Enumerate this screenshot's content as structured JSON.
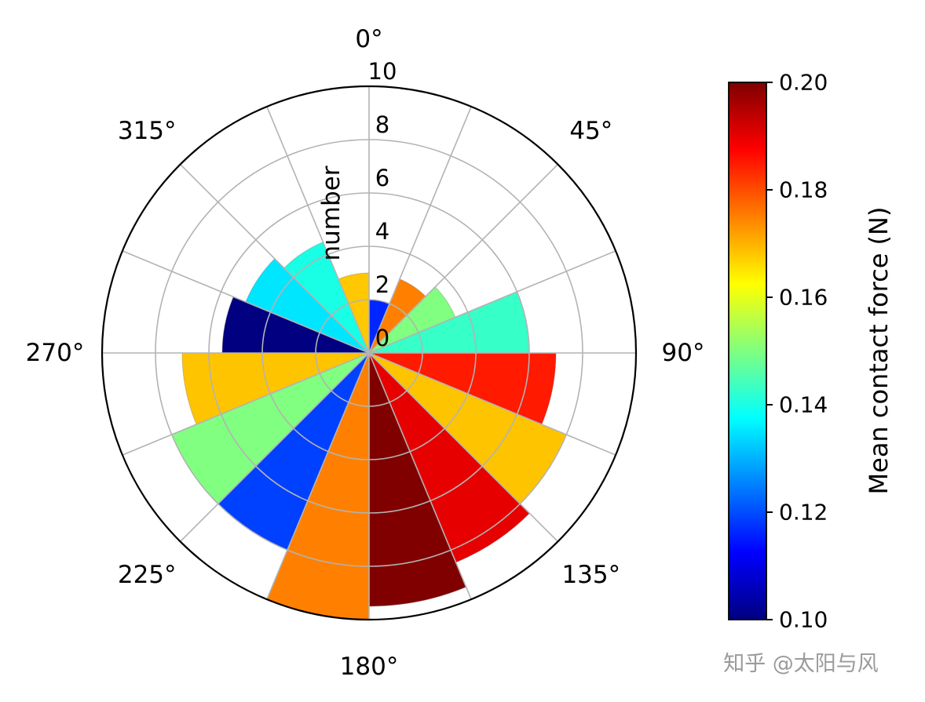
{
  "chart_data": {
    "type": "polar_bar",
    "title": "",
    "radial_label": "number",
    "radial_ticks": [
      0,
      2,
      4,
      6,
      8,
      10
    ],
    "radial_max": 10,
    "grid_deg_step": 22.5,
    "angular_ticks": [
      {
        "deg": 0,
        "label": "0°"
      },
      {
        "deg": 45,
        "label": "45°"
      },
      {
        "deg": 90,
        "label": "90°"
      },
      {
        "deg": 135,
        "label": "135°"
      },
      {
        "deg": 180,
        "label": "180°"
      },
      {
        "deg": 225,
        "label": "225°"
      },
      {
        "deg": 270,
        "label": "270°"
      },
      {
        "deg": 315,
        "label": "315°"
      }
    ],
    "bars": [
      {
        "start_deg": 0.0,
        "end_deg": 22.5,
        "number": 2,
        "mean_contact_force_N": 0.115,
        "color": "#0026ff"
      },
      {
        "start_deg": 22.5,
        "end_deg": 45.0,
        "number": 3,
        "mean_contact_force_N": 0.175,
        "color": "#ff8000"
      },
      {
        "start_deg": 45.0,
        "end_deg": 67.5,
        "number": 3.5,
        "mean_contact_force_N": 0.15,
        "color": "#80ff80"
      },
      {
        "start_deg": 67.5,
        "end_deg": 90.0,
        "number": 6,
        "mean_contact_force_N": 0.143,
        "color": "#36ffc8"
      },
      {
        "start_deg": 90.0,
        "end_deg": 112.5,
        "number": 7,
        "mean_contact_force_N": 0.185,
        "color": "#ff1a00"
      },
      {
        "start_deg": 112.5,
        "end_deg": 135.0,
        "number": 8,
        "mean_contact_force_N": 0.168,
        "color": "#ffc400"
      },
      {
        "start_deg": 135.0,
        "end_deg": 157.5,
        "number": 8.5,
        "mean_contact_force_N": 0.19,
        "color": "#e60000"
      },
      {
        "start_deg": 157.5,
        "end_deg": 180.0,
        "number": 9.5,
        "mean_contact_force_N": 0.2,
        "color": "#800000"
      },
      {
        "start_deg": 180.0,
        "end_deg": 202.5,
        "number": 10,
        "mean_contact_force_N": 0.175,
        "color": "#ff8000"
      },
      {
        "start_deg": 202.5,
        "end_deg": 225.0,
        "number": 8,
        "mean_contact_force_N": 0.12,
        "color": "#0040ff"
      },
      {
        "start_deg": 225.0,
        "end_deg": 247.5,
        "number": 8,
        "mean_contact_force_N": 0.15,
        "color": "#80ff80"
      },
      {
        "start_deg": 247.5,
        "end_deg": 270.0,
        "number": 7,
        "mean_contact_force_N": 0.168,
        "color": "#ffc400"
      },
      {
        "start_deg": 270.0,
        "end_deg": 292.5,
        "number": 5.5,
        "mean_contact_force_N": 0.1,
        "color": "#000080"
      },
      {
        "start_deg": 292.5,
        "end_deg": 315.0,
        "number": 5,
        "mean_contact_force_N": 0.135,
        "color": "#00e6ff"
      },
      {
        "start_deg": 315.0,
        "end_deg": 337.5,
        "number": 4.5,
        "mean_contact_force_N": 0.14,
        "color": "#19ffe5"
      },
      {
        "start_deg": 337.5,
        "end_deg": 360.0,
        "number": 3,
        "mean_contact_force_N": 0.166,
        "color": "#ffc800"
      }
    ],
    "colorbar": {
      "label": "Mean contact force (N)",
      "min": 0.1,
      "max": 0.2,
      "ticks": [
        "0.20",
        "0.18",
        "0.16",
        "0.14",
        "0.12",
        "0.10"
      ],
      "colormap": "jet",
      "gradient_stops_top_to_bottom": [
        {
          "pos": "0",
          "color": "#7f0000"
        },
        {
          "pos": "0.125",
          "color": "#ff0000"
        },
        {
          "pos": "0.375",
          "color": "#ffff00"
        },
        {
          "pos": "0.625",
          "color": "#00ffff"
        },
        {
          "pos": "0.875",
          "color": "#0000ff"
        },
        {
          "pos": "1",
          "color": "#000080"
        }
      ]
    },
    "layout_hints": {
      "grid": true,
      "theta_zero_location": "top",
      "theta_direction": "clockwise",
      "legend_position": "colorbar-right"
    }
  },
  "watermark": "知乎 @太阳与风"
}
